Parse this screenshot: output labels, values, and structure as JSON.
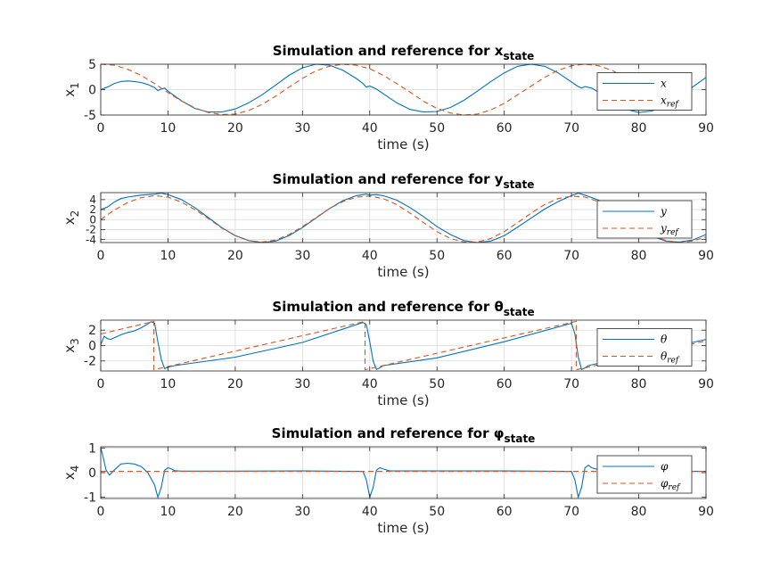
{
  "figure": {
    "background": "#ffffff"
  },
  "colors": {
    "sim": "#0072BD",
    "ref": "#D95319",
    "grid": "#d9d9d9",
    "axis": "#262626"
  },
  "chart_data": [
    {
      "type": "line",
      "title_main": "Simulation and reference for x",
      "title_sub": "state",
      "xlabel": "time (s)",
      "ylabel_main": "x",
      "ylabel_sub": "1",
      "xlim": [
        0,
        90
      ],
      "ylim": [
        -5,
        5
      ],
      "xticks": [
        "0",
        "10",
        "20",
        "30",
        "40",
        "50",
        "60",
        "70",
        "80",
        "90"
      ],
      "yticks": [
        "-5",
        "0",
        "5"
      ],
      "ytick_values": [
        -5,
        0,
        5
      ],
      "legend": {
        "position": "right",
        "entries": [
          {
            "main": "x",
            "sub": ""
          },
          {
            "main": "x",
            "sub": "ref"
          }
        ]
      },
      "series": [
        {
          "name": "x",
          "x": [
            0,
            1,
            2,
            3,
            4,
            5,
            6,
            7,
            8,
            8.5,
            9,
            9.5,
            10,
            12,
            14,
            16,
            18,
            20,
            22,
            24,
            26,
            28,
            30,
            32,
            34,
            36,
            38,
            39,
            39.5,
            40,
            41,
            42,
            44,
            46,
            48,
            50,
            52,
            54,
            56,
            58,
            60,
            62,
            64,
            66,
            68,
            70,
            71,
            71.5,
            72,
            73,
            74,
            76,
            78,
            80,
            82,
            84,
            86,
            88,
            90
          ],
          "y": [
            0,
            0.5,
            1.2,
            1.6,
            1.7,
            1.6,
            1.4,
            1.0,
            0.4,
            -0.2,
            0.1,
            0.3,
            -0.3,
            -2.2,
            -3.7,
            -4.4,
            -4.4,
            -3.8,
            -2.6,
            -1.0,
            0.9,
            2.8,
            4.3,
            5.0,
            4.8,
            3.8,
            2.2,
            1.2,
            0.5,
            0.7,
            0.1,
            -0.8,
            -2.6,
            -3.9,
            -4.4,
            -4.3,
            -3.5,
            -2.1,
            -0.3,
            1.6,
            3.3,
            4.6,
            5.0,
            4.6,
            3.3,
            1.5,
            0.6,
            0.3,
            0.6,
            0.3,
            -0.5,
            -2.3,
            -3.8,
            -4.5,
            -4.2,
            -3.1,
            -1.5,
            0.5,
            2.4
          ]
        },
        {
          "name": "x_ref",
          "x": [
            0,
            2,
            4,
            6,
            8,
            10,
            12,
            14,
            16,
            18,
            20,
            22,
            24,
            26,
            28,
            30,
            32,
            34,
            36,
            38,
            40,
            42,
            44,
            46,
            48,
            50,
            52,
            54,
            56,
            58,
            60,
            62,
            64,
            66,
            68,
            70,
            72,
            74,
            76,
            78,
            80
          ],
          "y": [
            5.0,
            4.8,
            4.0,
            2.8,
            1.2,
            -0.6,
            -2.2,
            -3.6,
            -4.5,
            -4.9,
            -4.8,
            -4.1,
            -2.9,
            -1.3,
            0.5,
            2.2,
            3.7,
            4.6,
            5.0,
            4.8,
            4.1,
            2.8,
            1.2,
            -0.5,
            -2.3,
            -3.7,
            -4.6,
            -5.0,
            -4.8,
            -4.0,
            -2.7,
            -1.0,
            0.7,
            2.4,
            3.8,
            4.7,
            5.0,
            4.7,
            3.8,
            2.4,
            0.7
          ]
        }
      ]
    },
    {
      "type": "line",
      "title_main": "Simulation and reference for y",
      "title_sub": "state",
      "xlabel": "time (s)",
      "ylabel_main": "x",
      "ylabel_sub": "2",
      "xlim": [
        0,
        90
      ],
      "ylim": [
        -4.6,
        5.4
      ],
      "xticks": [
        "0",
        "10",
        "20",
        "30",
        "40",
        "50",
        "60",
        "70",
        "80",
        "90"
      ],
      "yticks": [
        "-4",
        "-2",
        "0",
        "2",
        "4"
      ],
      "ytick_values": [
        -4,
        -2,
        0,
        2,
        4
      ],
      "legend": {
        "position": "right",
        "entries": [
          {
            "main": "y",
            "sub": ""
          },
          {
            "main": "y",
            "sub": "ref"
          }
        ]
      },
      "series": [
        {
          "name": "y",
          "x": [
            0,
            1,
            2,
            3,
            4,
            5,
            6,
            7,
            8,
            9,
            10,
            12,
            14,
            16,
            18,
            20,
            22,
            24,
            26,
            28,
            30,
            32,
            34,
            36,
            38,
            39.5,
            40,
            41,
            42,
            44,
            46,
            48,
            50,
            52,
            54,
            56,
            58,
            60,
            62,
            64,
            66,
            68,
            70,
            71,
            72,
            74,
            76,
            78,
            80,
            82,
            84,
            86,
            88,
            90
          ],
          "y": [
            2.0,
            2.5,
            3.5,
            4.2,
            4.5,
            4.7,
            4.9,
            5.0,
            5.1,
            5.3,
            5.0,
            4.0,
            2.4,
            0.4,
            -1.6,
            -3.2,
            -4.2,
            -4.6,
            -4.3,
            -3.2,
            -1.6,
            0.3,
            2.2,
            3.8,
            4.8,
            5.1,
            4.9,
            5.0,
            4.8,
            3.9,
            2.4,
            0.6,
            -1.4,
            -3.0,
            -4.2,
            -4.6,
            -4.3,
            -3.2,
            -1.5,
            0.3,
            2.1,
            3.6,
            4.8,
            5.3,
            4.9,
            3.9,
            2.3,
            0.3,
            -1.7,
            -3.3,
            -4.3,
            -4.5,
            -4.1,
            -3.0
          ]
        },
        {
          "name": "y_ref",
          "x": [
            0,
            2,
            4,
            6,
            8,
            10,
            12,
            14,
            16,
            18,
            20,
            22,
            24,
            26,
            28,
            30,
            32,
            34,
            36,
            38,
            40,
            42,
            44,
            46,
            48,
            50,
            52,
            54,
            56,
            58,
            60,
            62,
            64,
            66,
            68,
            70,
            72,
            74,
            76,
            78,
            80,
            82,
            84,
            86,
            88,
            90
          ],
          "y": [
            0,
            1.9,
            3.4,
            4.4,
            4.8,
            4.5,
            3.5,
            2.0,
            0.2,
            -1.7,
            -3.2,
            -4.2,
            -4.5,
            -4.1,
            -3.0,
            -1.4,
            0.4,
            2.2,
            3.6,
            4.5,
            4.7,
            4.2,
            3.0,
            1.3,
            -0.6,
            -2.4,
            -3.8,
            -4.5,
            -4.5,
            -3.8,
            -2.4,
            -0.6,
            1.3,
            3.0,
            4.2,
            4.7,
            4.5,
            3.6,
            2.2,
            0.4,
            -1.5,
            -3.1,
            -4.2,
            -4.6,
            -4.3,
            -3.5
          ]
        }
      ]
    },
    {
      "type": "line",
      "title_main": "Simulation and reference for θ",
      "title_sub": "state",
      "xlabel": "time (s)",
      "ylabel_main": "x",
      "ylabel_sub": "3",
      "xlim": [
        0,
        90
      ],
      "ylim": [
        -3.3,
        3.3
      ],
      "xticks": [
        "0",
        "10",
        "20",
        "30",
        "40",
        "50",
        "60",
        "70",
        "80",
        "90"
      ],
      "yticks": [
        "-2",
        "0",
        "2"
      ],
      "ytick_values": [
        -2,
        0,
        2
      ],
      "legend": {
        "position": "right",
        "entries": [
          {
            "main": "θ",
            "sub": ""
          },
          {
            "main": "θ",
            "sub": "ref"
          }
        ]
      },
      "series": [
        {
          "name": "θ",
          "x": [
            0,
            0.5,
            1,
            1.5,
            2,
            3,
            4,
            5,
            6,
            7,
            7.5,
            8,
            8.5,
            9,
            9.5,
            10,
            11,
            20,
            30,
            39,
            39.5,
            40,
            40.5,
            41,
            41.5,
            42,
            50,
            60,
            70,
            70.5,
            71,
            71.5,
            72,
            72.5,
            73,
            74,
            76,
            78,
            80,
            82,
            84,
            86,
            88,
            90
          ],
          "y": [
            0.1,
            1.2,
            0.9,
            0.8,
            1.0,
            1.4,
            1.7,
            1.9,
            2.3,
            2.8,
            3.1,
            2.9,
            0.5,
            -1.8,
            -3.0,
            -2.8,
            -2.6,
            -1.5,
            0.4,
            3.0,
            2.7,
            0.5,
            -2.0,
            -3.1,
            -2.9,
            -2.6,
            -1.6,
            0.5,
            2.9,
            1.5,
            -1.5,
            -3.1,
            -2.9,
            -2.6,
            -2.5,
            -2.3,
            -1.9,
            -1.5,
            -1.1,
            -0.7,
            -0.3,
            0.1,
            0.4,
            0.8
          ]
        },
        {
          "name": "θ_ref",
          "x": [
            0,
            7.9,
            7.9,
            39.3,
            39.3,
            70.7,
            70.7,
            90
          ],
          "y": [
            1.5,
            3.14,
            -3.14,
            3.14,
            -3.14,
            3.14,
            -3.14,
            0.6
          ]
        }
      ]
    },
    {
      "type": "line",
      "title_main": "Simulation and reference for φ",
      "title_sub": "state",
      "xlabel": "time (s)",
      "ylabel_main": "x",
      "ylabel_sub": "4",
      "xlim": [
        0,
        90
      ],
      "ylim": [
        -1.05,
        1.05
      ],
      "xticks": [
        "0",
        "10",
        "20",
        "30",
        "40",
        "50",
        "60",
        "70",
        "80",
        "90"
      ],
      "yticks": [
        "-1",
        "0",
        "1"
      ],
      "ytick_values": [
        -1,
        0,
        1
      ],
      "legend": {
        "position": "right",
        "entries": [
          {
            "main": "φ",
            "sub": ""
          },
          {
            "main": "φ",
            "sub": "ref"
          }
        ]
      },
      "series": [
        {
          "name": "φ",
          "x": [
            0,
            0.3,
            0.8,
            1.3,
            2,
            3,
            4,
            5,
            6,
            7,
            8,
            8.5,
            9,
            9.5,
            10,
            10.5,
            11,
            12,
            20,
            30,
            39,
            39.5,
            40,
            40.5,
            41,
            41.5,
            42,
            43,
            50,
            60,
            70,
            70.5,
            71,
            71.5,
            72,
            72.5,
            73,
            74,
            80,
            90
          ],
          "y": [
            1.0,
            0.7,
            0.1,
            -0.1,
            0.1,
            0.35,
            0.38,
            0.35,
            0.25,
            0.0,
            -0.5,
            -1.0,
            -0.6,
            0.1,
            0.2,
            0.15,
            0.08,
            0.06,
            0.06,
            0.07,
            0.05,
            -0.3,
            -1.0,
            -0.6,
            0.1,
            0.2,
            0.15,
            0.07,
            0.07,
            0.07,
            0.05,
            -0.3,
            -1.0,
            -0.6,
            0.2,
            0.3,
            0.2,
            0.12,
            0.06,
            0.05
          ]
        },
        {
          "name": "φ_ref",
          "x": [
            0,
            90
          ],
          "y": [
            0.05,
            0.05
          ]
        }
      ]
    }
  ]
}
